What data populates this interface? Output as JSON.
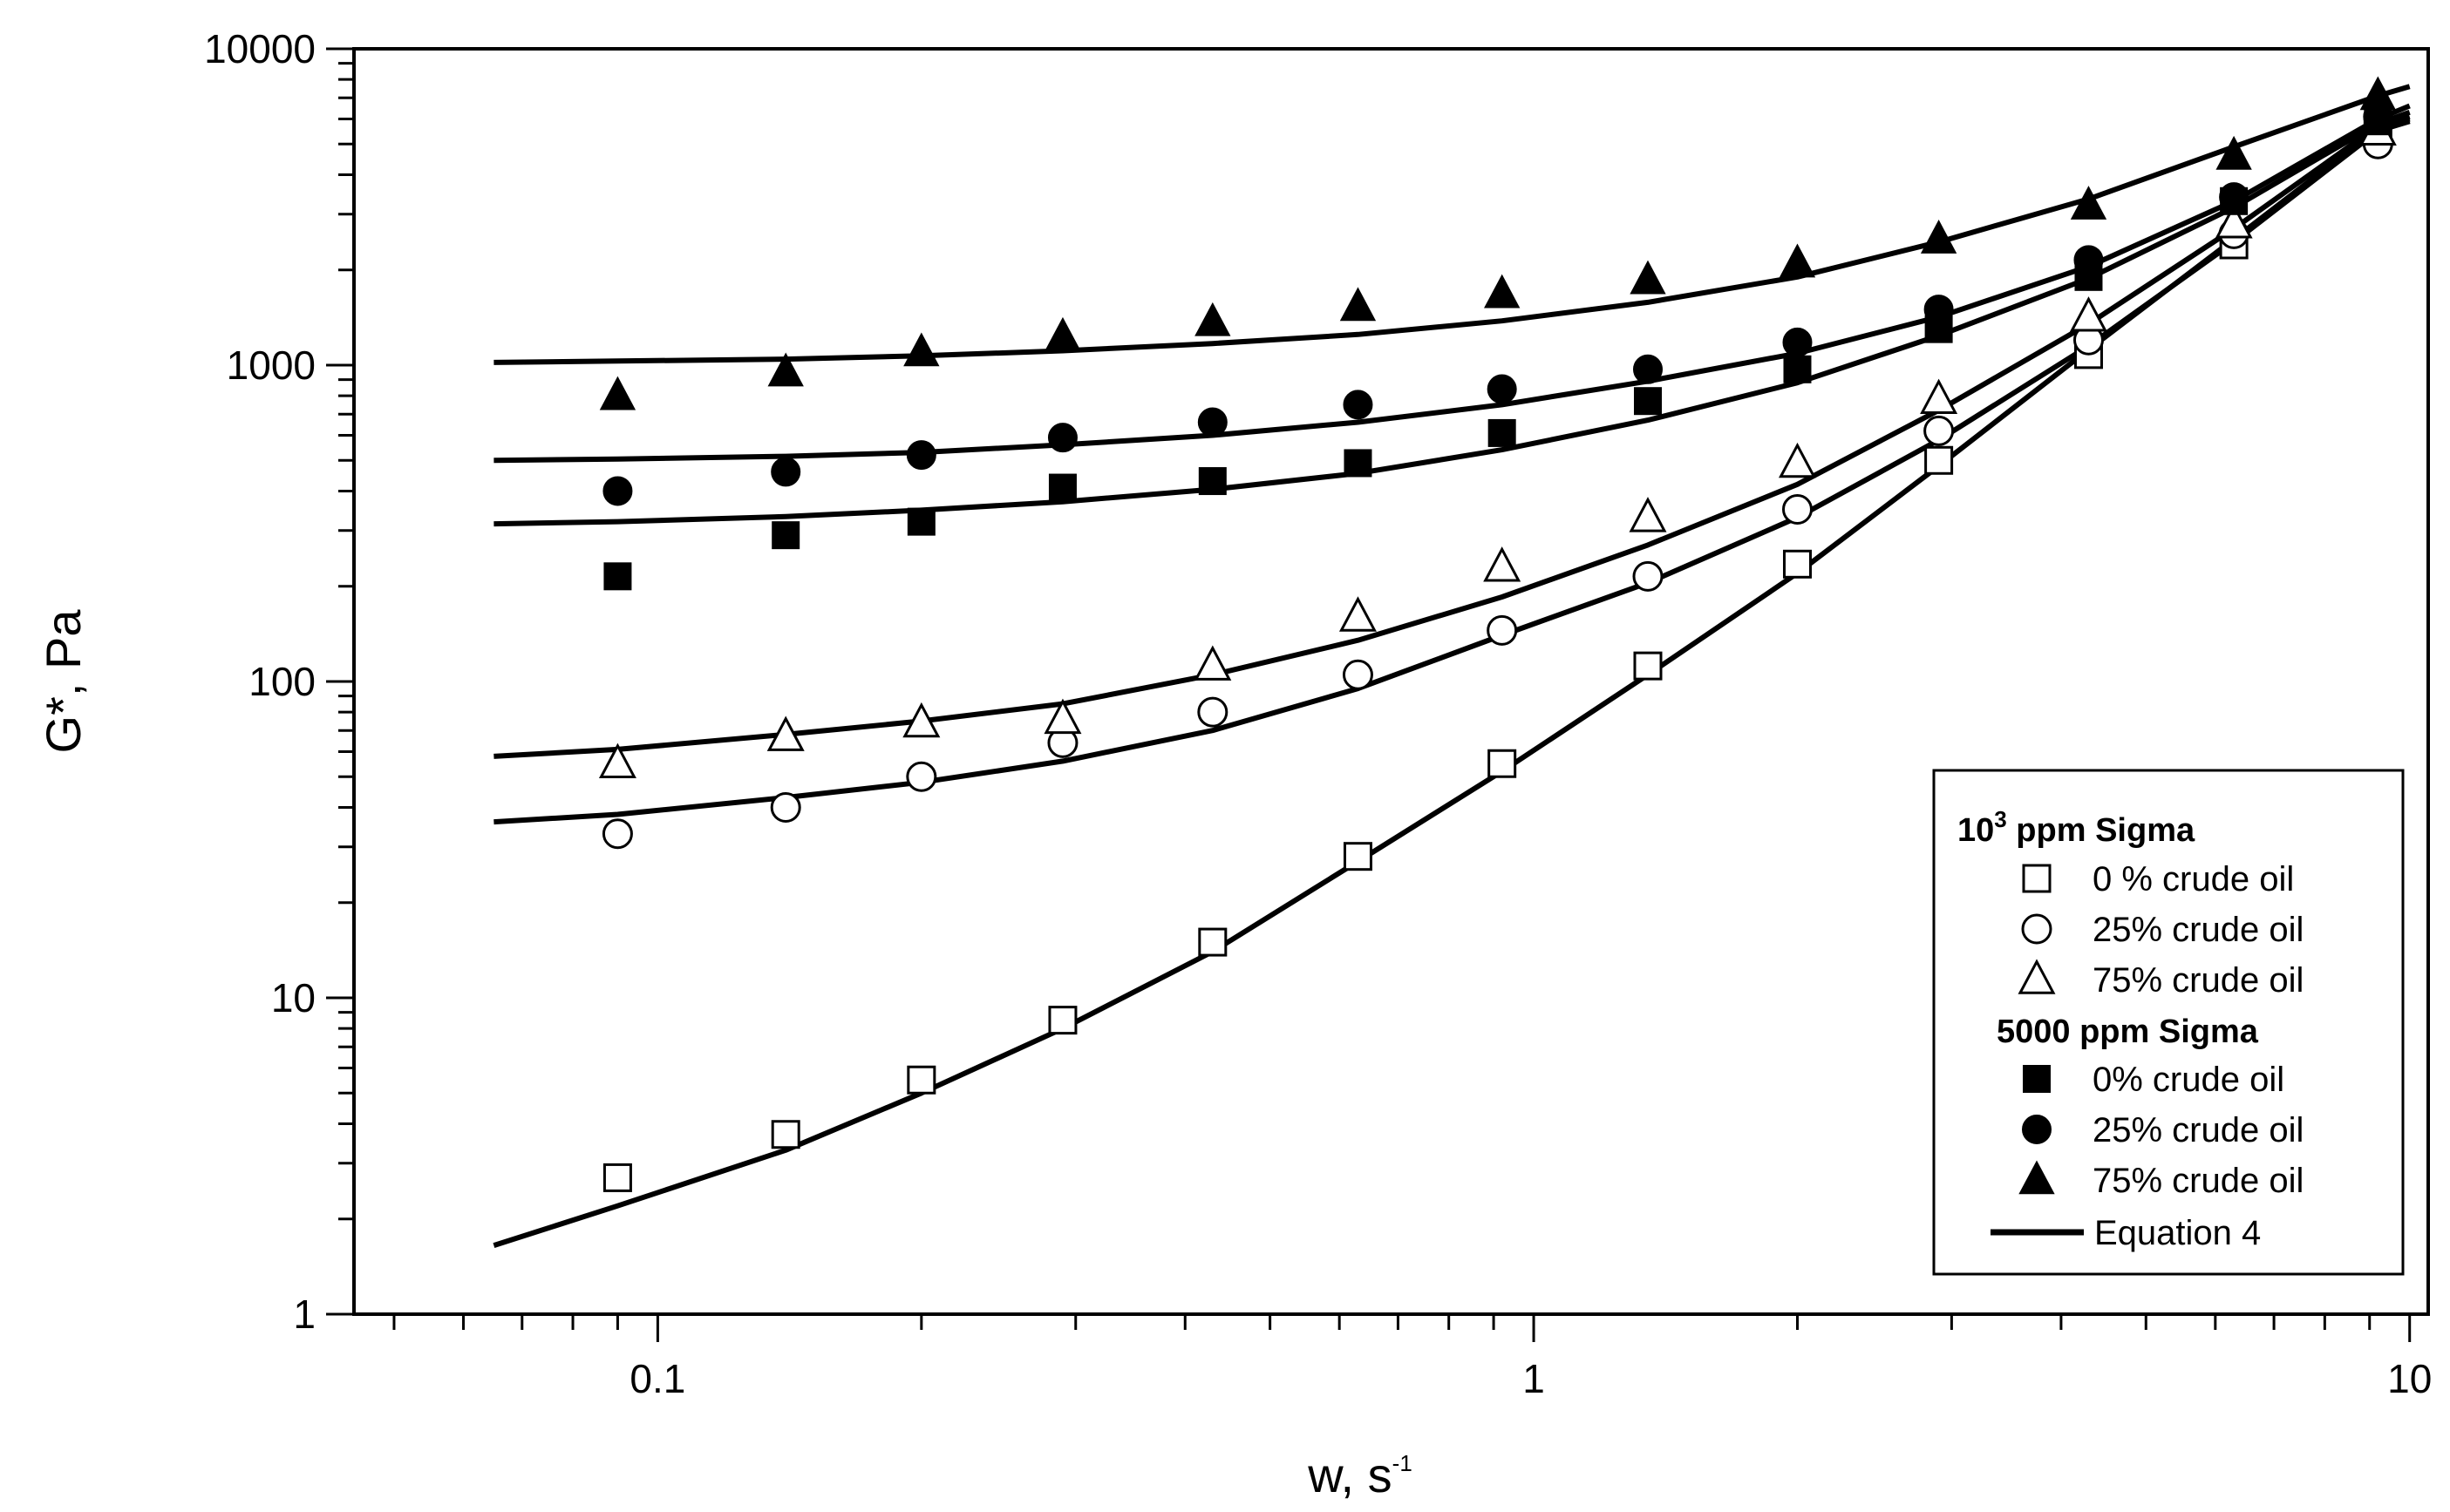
{
  "chart_data": {
    "type": "scatter",
    "title": "",
    "xlabel": "w, s",
    "xlabel_sup": "-1",
    "ylabel": "G*, Pa",
    "xscale": "log",
    "yscale": "log",
    "xlim": [
      0.045,
      10.5
    ],
    "ylim": [
      1,
      10000
    ],
    "xticks": [
      {
        "value": 0.1,
        "label": "0.1"
      },
      {
        "value": 1,
        "label": "1"
      },
      {
        "value": 10,
        "label": "10"
      }
    ],
    "yticks": [
      {
        "value": 1,
        "label": "1"
      },
      {
        "value": 10,
        "label": "10"
      },
      {
        "value": 100,
        "label": "100"
      },
      {
        "value": 1000,
        "label": "1000"
      },
      {
        "value": 10000,
        "label": "10000"
      }
    ],
    "x": [
      0.09,
      0.14,
      0.2,
      0.29,
      0.43,
      0.63,
      0.92,
      1.35,
      2.0,
      2.9,
      4.3,
      6.3,
      9.2
    ],
    "series": [
      {
        "name": "0 % crude oil",
        "group": "1000 ppm Sigma",
        "marker": "square-open",
        "values": [
          2.7,
          3.7,
          5.5,
          8.5,
          15,
          28,
          55,
          112,
          235,
          500,
          1080,
          2400,
          5500
        ]
      },
      {
        "name": "25% crude oil",
        "group": "1000 ppm Sigma",
        "marker": "circle-open",
        "values": [
          33,
          40,
          50,
          64,
          80,
          105,
          145,
          215,
          350,
          620,
          1200,
          2600,
          5000
        ]
      },
      {
        "name": "75% crude oil",
        "group": "1000 ppm Sigma",
        "marker": "triangle-open",
        "values": [
          55,
          67,
          74,
          76,
          112,
          160,
          230,
          330,
          490,
          780,
          1420,
          2800,
          5500
        ]
      },
      {
        "name": "0% crude oil",
        "group": "5000 ppm Sigma",
        "marker": "square-filled",
        "values": [
          215,
          290,
          320,
          410,
          430,
          490,
          610,
          770,
          970,
          1300,
          1900,
          3300,
          5900
        ]
      },
      {
        "name": "25% crude oil",
        "group": "5000 ppm Sigma",
        "marker": "circle-filled",
        "values": [
          400,
          460,
          520,
          590,
          660,
          750,
          840,
          970,
          1180,
          1500,
          2150,
          3400,
          6100
        ]
      },
      {
        "name": "75% crude oil",
        "group": "5000 ppm Sigma",
        "marker": "triangle-filled",
        "values": [
          800,
          950,
          1100,
          1230,
          1370,
          1530,
          1680,
          1860,
          2100,
          2500,
          3200,
          4600,
          7100
        ]
      }
    ],
    "fit_curves": {
      "name": "Equation 4",
      "x": [
        0.065,
        0.09,
        0.14,
        0.2,
        0.29,
        0.43,
        0.63,
        0.92,
        1.35,
        2.0,
        2.9,
        4.3,
        6.3,
        9.2,
        10.0
      ],
      "curves": [
        {
          "for": "0 % crude oil",
          "values": [
            1.65,
            2.2,
            3.3,
            5.0,
            8.0,
            14,
            27,
            52,
            105,
            220,
            480,
            1120,
            2500,
            5600,
            6000
          ]
        },
        {
          "for": "25% crude oil",
          "values": [
            36,
            38,
            43,
            48,
            56,
            70,
            95,
            140,
            205,
            330,
            580,
            1150,
            2450,
            5500,
            5900
          ]
        },
        {
          "for": "75% crude oil",
          "values": [
            58,
            61,
            68,
            75,
            85,
            105,
            135,
            185,
            270,
            420,
            720,
            1350,
            2700,
            5700,
            6100
          ]
        },
        {
          "for": "0% crude oil (5000 ppm)",
          "values": [
            315,
            320,
            332,
            348,
            370,
            405,
            455,
            540,
            670,
            880,
            1240,
            1880,
            3150,
            5800,
            6300
          ]
        },
        {
          "for": "25% crude oil (5000 ppm)",
          "values": [
            500,
            505,
            515,
            530,
            560,
            600,
            660,
            750,
            890,
            1090,
            1420,
            2050,
            3300,
            6000,
            6600
          ]
        },
        {
          "for": "75% crude oil (5000 ppm)",
          "values": [
            1020,
            1030,
            1045,
            1070,
            1110,
            1170,
            1250,
            1380,
            1580,
            1900,
            2450,
            3350,
            4900,
            7100,
            7600
          ]
        }
      ]
    },
    "legend": {
      "position": "bottom-right",
      "group1_base": "10",
      "group1_exp": "3",
      "group1_suffix": " ppm Sigma",
      "group2_title": "5000 ppm Sigma",
      "line_label": "Equation 4"
    }
  }
}
